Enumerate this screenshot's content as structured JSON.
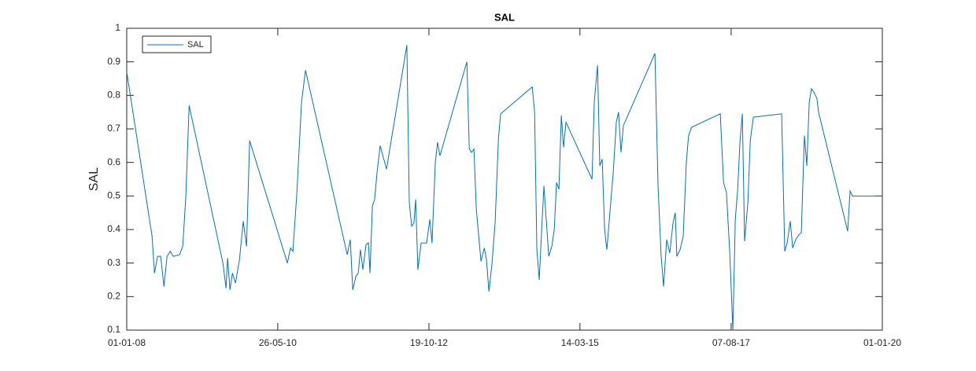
{
  "chart_data": {
    "type": "line",
    "title": "SAL",
    "y_label": "SAL",
    "xlim": [
      "2008-01-01",
      "2020-01-01"
    ],
    "xticks": [
      {
        "value": "2008-01-01",
        "label": "01-01-08"
      },
      {
        "value": "2010-05-26",
        "label": "26-05-10"
      },
      {
        "value": "2012-10-19",
        "label": "19-10-12"
      },
      {
        "value": "2015-03-14",
        "label": "14-03-15"
      },
      {
        "value": "2017-08-07",
        "label": "07-08-17"
      },
      {
        "value": "2020-01-01",
        "label": "01-01-20"
      }
    ],
    "ylim": [
      0.1,
      1
    ],
    "yticks": [
      0.1,
      0.2,
      0.3,
      0.4,
      0.5,
      0.6,
      0.7,
      0.8,
      0.9,
      1
    ],
    "grid": false,
    "legend": "northwest",
    "x": [
      "2008-01-01",
      "2008-05-27",
      "2008-06-10",
      "2008-06-28",
      "2008-07-16",
      "2008-08-04",
      "2008-08-22",
      "2008-09-09",
      "2008-09-27",
      "2008-11-03",
      "2008-11-21",
      "2008-12-09",
      "2008-12-28",
      "2009-07-12",
      "2009-07-30",
      "2009-08-08",
      "2009-08-22",
      "2009-09-05",
      "2009-09-23",
      "2009-10-16",
      "2009-11-07",
      "2009-11-26",
      "2009-12-14",
      "2010-07-21",
      "2010-08-08",
      "2010-08-22",
      "2010-09-14",
      "2010-10-11",
      "2010-11-03",
      "2011-07-03",
      "2011-07-21",
      "2011-08-04",
      "2011-08-22",
      "2011-09-05",
      "2011-09-18",
      "2011-10-02",
      "2011-10-20",
      "2011-11-03",
      "2011-11-12",
      "2011-11-26",
      "2011-12-09",
      "2011-12-23",
      "2012-01-10",
      "2012-02-16",
      "2012-06-13",
      "2012-06-27",
      "2012-07-11",
      "2012-07-24",
      "2012-08-03",
      "2012-08-16",
      "2012-09-04",
      "2012-10-06",
      "2012-10-24",
      "2012-11-06",
      "2012-11-25",
      "2012-12-08",
      "2012-12-22",
      "2013-05-27",
      "2013-06-10",
      "2013-06-24",
      "2013-07-07",
      "2013-07-21",
      "2013-08-17",
      "2013-09-05",
      "2013-09-18",
      "2013-10-02",
      "2013-10-20",
      "2013-11-07",
      "2013-11-26",
      "2013-12-09",
      "2014-06-10",
      "2014-06-24",
      "2014-07-07",
      "2014-07-21",
      "2014-08-04",
      "2014-08-17",
      "2014-09-14",
      "2014-10-02",
      "2014-10-16",
      "2014-10-29",
      "2014-11-12",
      "2014-11-26",
      "2014-12-09",
      "2014-12-23",
      "2015-05-23",
      "2015-06-05",
      "2015-06-24",
      "2015-07-07",
      "2015-07-21",
      "2015-08-04",
      "2015-08-17",
      "2015-09-23",
      "2015-10-11",
      "2015-10-24",
      "2015-11-07",
      "2015-11-21",
      "2016-05-22",
      "2016-06-09",
      "2016-06-27",
      "2016-07-11",
      "2016-07-29",
      "2016-08-16",
      "2016-09-04",
      "2016-09-17",
      "2016-09-26",
      "2016-10-15",
      "2016-11-02",
      "2016-11-20",
      "2016-12-03",
      "2016-12-21",
      "2017-06-05",
      "2017-06-24",
      "2017-07-11",
      "2017-07-30",
      "2017-08-17",
      "2017-08-31",
      "2017-09-14",
      "2017-09-27",
      "2017-10-11",
      "2017-10-24",
      "2017-11-12",
      "2017-11-26",
      "2017-12-14",
      "2018-05-27",
      "2018-06-14",
      "2018-06-28",
      "2018-07-16",
      "2018-07-30",
      "2018-08-17",
      "2018-09-05",
      "2018-09-18",
      "2018-10-06",
      "2018-10-20",
      "2018-11-03",
      "2018-11-16",
      "2018-11-30",
      "2018-12-18",
      "2018-12-27",
      "2019-06-14",
      "2019-06-28",
      "2019-07-12",
      "2020-01-01"
    ],
    "series": [
      {
        "name": "SAL",
        "color": "#0072bd",
        "values": [
          0.87,
          0.38,
          0.27,
          0.32,
          0.32,
          0.23,
          0.32,
          0.335,
          0.32,
          0.325,
          0.35,
          0.5,
          0.77,
          0.3,
          0.225,
          0.315,
          0.22,
          0.27,
          0.24,
          0.31,
          0.425,
          0.35,
          0.665,
          0.3,
          0.345,
          0.335,
          0.51,
          0.78,
          0.875,
          0.325,
          0.37,
          0.22,
          0.26,
          0.27,
          0.34,
          0.28,
          0.355,
          0.36,
          0.27,
          0.47,
          0.49,
          0.57,
          0.65,
          0.58,
          0.95,
          0.48,
          0.41,
          0.42,
          0.49,
          0.28,
          0.36,
          0.36,
          0.43,
          0.36,
          0.6,
          0.66,
          0.62,
          0.9,
          0.64,
          0.63,
          0.64,
          0.46,
          0.305,
          0.345,
          0.31,
          0.215,
          0.3,
          0.42,
          0.67,
          0.745,
          0.825,
          0.75,
          0.34,
          0.25,
          0.4,
          0.53,
          0.32,
          0.35,
          0.4,
          0.54,
          0.52,
          0.74,
          0.645,
          0.72,
          0.55,
          0.78,
          0.89,
          0.59,
          0.61,
          0.4,
          0.34,
          0.57,
          0.72,
          0.75,
          0.63,
          0.71,
          0.925,
          0.53,
          0.32,
          0.23,
          0.37,
          0.33,
          0.42,
          0.45,
          0.32,
          0.34,
          0.38,
          0.6,
          0.68,
          0.705,
          0.745,
          0.54,
          0.51,
          0.33,
          0.1,
          0.43,
          0.52,
          0.66,
          0.745,
          0.365,
          0.48,
          0.665,
          0.735,
          0.745,
          0.335,
          0.36,
          0.425,
          0.345,
          0.37,
          0.385,
          0.39,
          0.68,
          0.59,
          0.78,
          0.82,
          0.81,
          0.79,
          0.75,
          0.395,
          0.515,
          0.5,
          0.5
        ]
      }
    ]
  }
}
